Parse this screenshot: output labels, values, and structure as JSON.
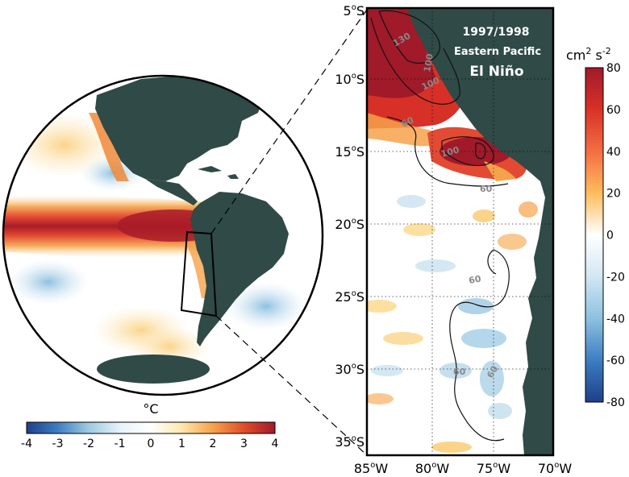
{
  "panel_title": {
    "line1": "1997/1998",
    "line2": "Eastern Pacific",
    "line3": "El Niño"
  },
  "globe_colorbar": {
    "unit": "°C",
    "min": -4,
    "max": 4,
    "ticks": [
      "-4",
      "-3",
      "-2",
      "-1",
      "0",
      "1",
      "2",
      "3",
      "4"
    ]
  },
  "map_colorbar": {
    "unit_base": "cm",
    "unit_sup1": "2",
    "unit_mid": " s",
    "unit_sup2": "-2",
    "min": -80,
    "max": 80,
    "ticks": [
      "80",
      "60",
      "40",
      "20",
      "0",
      "-20",
      "-40",
      "-60",
      "-80"
    ]
  },
  "lat_labels": [
    {
      "deg": "5",
      "sym": "o",
      "hem": "S"
    },
    {
      "deg": "10",
      "sym": "o",
      "hem": "S"
    },
    {
      "deg": "15",
      "sym": "o",
      "hem": "S"
    },
    {
      "deg": "20",
      "sym": "o",
      "hem": "S"
    },
    {
      "deg": "25",
      "sym": "o",
      "hem": "S"
    },
    {
      "deg": "30",
      "sym": "o",
      "hem": "S"
    },
    {
      "deg": "35",
      "sym": "o",
      "hem": "S"
    }
  ],
  "lon_labels": [
    {
      "deg": "85",
      "sym": "o",
      "hem": "W"
    },
    {
      "deg": "80",
      "sym": "o",
      "hem": "W"
    },
    {
      "deg": "75",
      "sym": "o",
      "hem": "W"
    },
    {
      "deg": "70",
      "sym": "o",
      "hem": "W"
    }
  ],
  "contour_labels": [
    "130",
    "100",
    "100",
    "60",
    "100",
    "60",
    "60",
    "60",
    "60"
  ],
  "colors": {
    "land": "#2f4a47",
    "warm_dark": "#b2182b",
    "warm": "#e34a33",
    "orange": "#f4a040",
    "light_warm": "#fde0a0",
    "cool": "#9ecae1",
    "cool_dark": "#2166ac"
  }
}
